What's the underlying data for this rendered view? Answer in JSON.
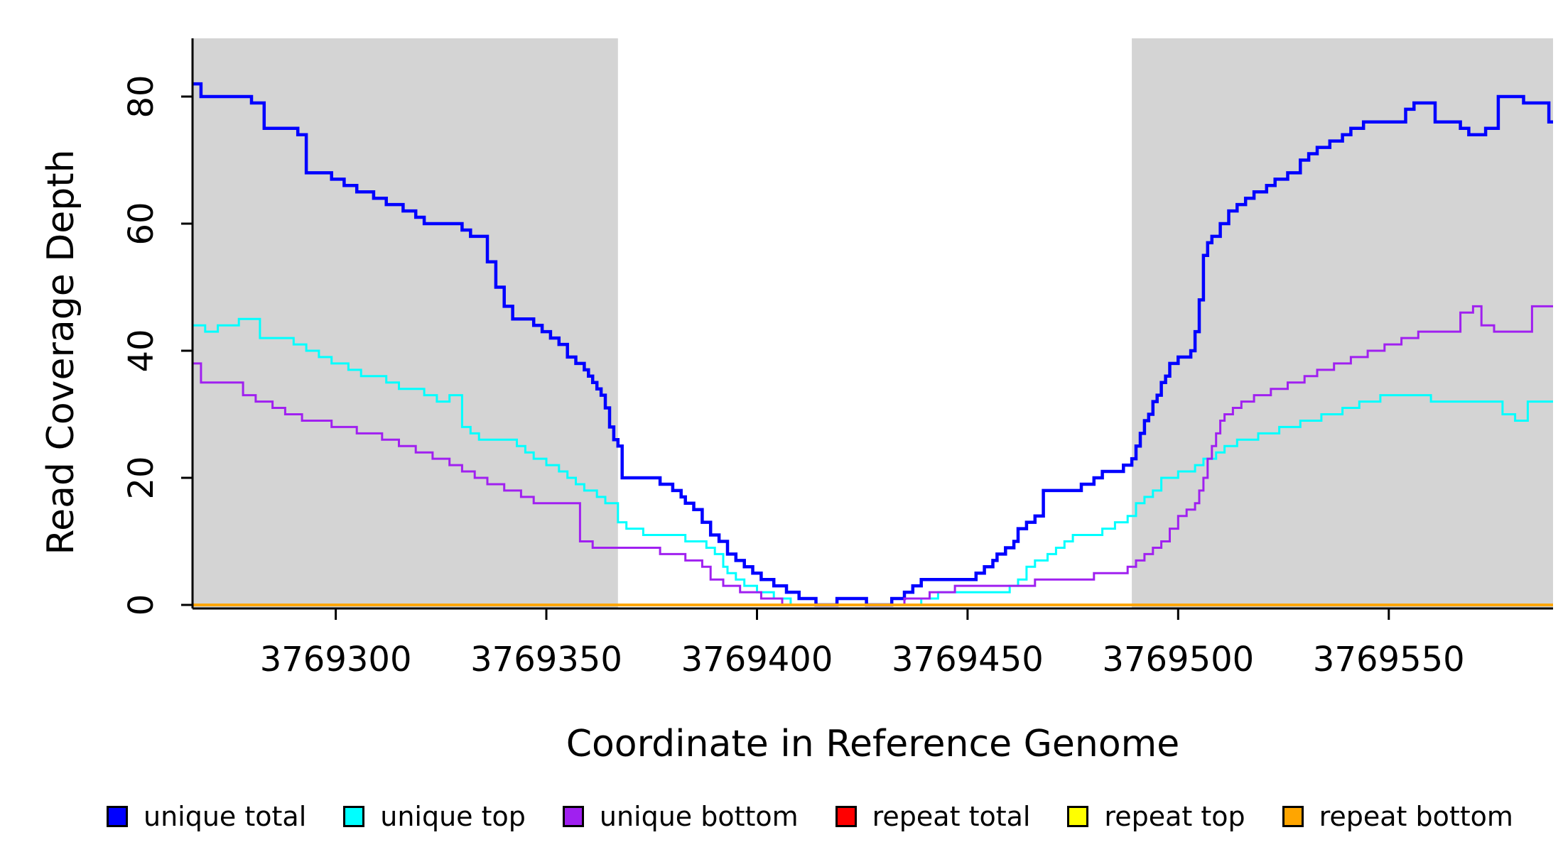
{
  "figure": {
    "xlabel": "Coordinate in Reference Genome",
    "ylabel": "Read Coverage Depth"
  },
  "legend": {
    "items": [
      {
        "label": "unique total",
        "color": "#0000FF"
      },
      {
        "label": "unique top",
        "color": "#00FFFF"
      },
      {
        "label": "unique bottom",
        "color": "#A020F0"
      },
      {
        "label": "repeat total",
        "color": "#FF0000"
      },
      {
        "label": "repeat top",
        "color": "#FFFF00"
      },
      {
        "label": "repeat bottom",
        "color": "#FFA500"
      }
    ]
  },
  "chart_data": {
    "type": "line",
    "subtype": "step",
    "title": "",
    "xlabel": "Coordinate in Reference Genome",
    "ylabel": "Read Coverage Depth",
    "xlim": [
      3769266,
      3769589
    ],
    "ylim": [
      0,
      89
    ],
    "x_ticks": [
      3769300,
      3769350,
      3769400,
      3769450,
      3769500,
      3769550
    ],
    "y_ticks": [
      0,
      20,
      40,
      60,
      80
    ],
    "grid": false,
    "legend_position": "bottom",
    "shaded_regions": [
      {
        "x0": 3769266,
        "x1": 3769367,
        "color": "#D4D4D4"
      },
      {
        "x0": 3769489,
        "x1": 3769589,
        "color": "#D4D4D4"
      }
    ],
    "axis_color": "#000000",
    "series": [
      {
        "name": "unique total",
        "color": "#0000FF",
        "width": 4.5,
        "points": [
          [
            3769266,
            82
          ],
          [
            3769268,
            80
          ],
          [
            3769280,
            79
          ],
          [
            3769283,
            75
          ],
          [
            3769291,
            74
          ],
          [
            3769293,
            68
          ],
          [
            3769299,
            67
          ],
          [
            3769302,
            66
          ],
          [
            3769305,
            65
          ],
          [
            3769309,
            64
          ],
          [
            3769312,
            63
          ],
          [
            3769316,
            62
          ],
          [
            3769319,
            61
          ],
          [
            3769321,
            60
          ],
          [
            3769330,
            59
          ],
          [
            3769332,
            58
          ],
          [
            3769336,
            54
          ],
          [
            3769338,
            50
          ],
          [
            3769340,
            47
          ],
          [
            3769342,
            45
          ],
          [
            3769347,
            44
          ],
          [
            3769349,
            43
          ],
          [
            3769351,
            42
          ],
          [
            3769353,
            41
          ],
          [
            3769355,
            39
          ],
          [
            3769357,
            38
          ],
          [
            3769359,
            37
          ],
          [
            3769360,
            36
          ],
          [
            3769361,
            35
          ],
          [
            3769362,
            34
          ],
          [
            3769363,
            33
          ],
          [
            3769364,
            31
          ],
          [
            3769365,
            28
          ],
          [
            3769366,
            26
          ],
          [
            3769367,
            25
          ],
          [
            3769368,
            20
          ],
          [
            3769377,
            19
          ],
          [
            3769380,
            18
          ],
          [
            3769382,
            17
          ],
          [
            3769383,
            16
          ],
          [
            3769385,
            15
          ],
          [
            3769387,
            13
          ],
          [
            3769389,
            11
          ],
          [
            3769391,
            10
          ],
          [
            3769393,
            8
          ],
          [
            3769395,
            7
          ],
          [
            3769397,
            6
          ],
          [
            3769399,
            5
          ],
          [
            3769401,
            4
          ],
          [
            3769404,
            3
          ],
          [
            3769407,
            2
          ],
          [
            3769410,
            1
          ],
          [
            3769414,
            0
          ],
          [
            3769419,
            1
          ],
          [
            3769426,
            0
          ],
          [
            3769432,
            1
          ],
          [
            3769435,
            2
          ],
          [
            3769437,
            3
          ],
          [
            3769439,
            4
          ],
          [
            3769452,
            5
          ],
          [
            3769454,
            6
          ],
          [
            3769456,
            7
          ],
          [
            3769457,
            8
          ],
          [
            3769459,
            9
          ],
          [
            3769461,
            10
          ],
          [
            3769462,
            12
          ],
          [
            3769464,
            13
          ],
          [
            3769466,
            14
          ],
          [
            3769468,
            18
          ],
          [
            3769477,
            19
          ],
          [
            3769480,
            20
          ],
          [
            3769482,
            21
          ],
          [
            3769487,
            22
          ],
          [
            3769489,
            23
          ],
          [
            3769490,
            25
          ],
          [
            3769491,
            27
          ],
          [
            3769492,
            29
          ],
          [
            3769493,
            30
          ],
          [
            3769494,
            32
          ],
          [
            3769495,
            33
          ],
          [
            3769496,
            35
          ],
          [
            3769497,
            36
          ],
          [
            3769498,
            38
          ],
          [
            3769500,
            39
          ],
          [
            3769503,
            40
          ],
          [
            3769504,
            43
          ],
          [
            3769505,
            48
          ],
          [
            3769506,
            55
          ],
          [
            3769507,
            57
          ],
          [
            3769508,
            58
          ],
          [
            3769510,
            60
          ],
          [
            3769512,
            62
          ],
          [
            3769514,
            63
          ],
          [
            3769516,
            64
          ],
          [
            3769518,
            65
          ],
          [
            3769521,
            66
          ],
          [
            3769523,
            67
          ],
          [
            3769526,
            68
          ],
          [
            3769529,
            70
          ],
          [
            3769531,
            71
          ],
          [
            3769533,
            72
          ],
          [
            3769536,
            73
          ],
          [
            3769539,
            74
          ],
          [
            3769541,
            75
          ],
          [
            3769544,
            76
          ],
          [
            3769554,
            78
          ],
          [
            3769556,
            79
          ],
          [
            3769561,
            76
          ],
          [
            3769567,
            75
          ],
          [
            3769569,
            74
          ],
          [
            3769573,
            75
          ],
          [
            3769576,
            80
          ],
          [
            3769582,
            79
          ],
          [
            3769588,
            76
          ]
        ]
      },
      {
        "name": "unique top",
        "color": "#00FFFF",
        "width": 3,
        "points": [
          [
            3769266,
            44
          ],
          [
            3769269,
            43
          ],
          [
            3769272,
            44
          ],
          [
            3769277,
            45
          ],
          [
            3769282,
            42
          ],
          [
            3769290,
            41
          ],
          [
            3769293,
            40
          ],
          [
            3769296,
            39
          ],
          [
            3769299,
            38
          ],
          [
            3769303,
            37
          ],
          [
            3769306,
            36
          ],
          [
            3769312,
            35
          ],
          [
            3769315,
            34
          ],
          [
            3769321,
            33
          ],
          [
            3769324,
            32
          ],
          [
            3769327,
            33
          ],
          [
            3769330,
            28
          ],
          [
            3769332,
            27
          ],
          [
            3769334,
            26
          ],
          [
            3769343,
            25
          ],
          [
            3769345,
            24
          ],
          [
            3769347,
            23
          ],
          [
            3769350,
            22
          ],
          [
            3769353,
            21
          ],
          [
            3769355,
            20
          ],
          [
            3769357,
            19
          ],
          [
            3769359,
            18
          ],
          [
            3769362,
            17
          ],
          [
            3769364,
            16
          ],
          [
            3769367,
            13
          ],
          [
            3769369,
            12
          ],
          [
            3769373,
            11
          ],
          [
            3769383,
            10
          ],
          [
            3769388,
            9
          ],
          [
            3769390,
            8
          ],
          [
            3769392,
            6
          ],
          [
            3769393,
            5
          ],
          [
            3769395,
            4
          ],
          [
            3769397,
            3
          ],
          [
            3769400,
            2
          ],
          [
            3769404,
            1
          ],
          [
            3769408,
            0
          ],
          [
            3769439,
            1
          ],
          [
            3769443,
            2
          ],
          [
            3769460,
            3
          ],
          [
            3769462,
            4
          ],
          [
            3769464,
            6
          ],
          [
            3769466,
            7
          ],
          [
            3769469,
            8
          ],
          [
            3769471,
            9
          ],
          [
            3769473,
            10
          ],
          [
            3769475,
            11
          ],
          [
            3769482,
            12
          ],
          [
            3769485,
            13
          ],
          [
            3769488,
            14
          ],
          [
            3769490,
            16
          ],
          [
            3769492,
            17
          ],
          [
            3769494,
            18
          ],
          [
            3769496,
            20
          ],
          [
            3769500,
            21
          ],
          [
            3769504,
            22
          ],
          [
            3769506,
            23
          ],
          [
            3769509,
            24
          ],
          [
            3769511,
            25
          ],
          [
            3769514,
            26
          ],
          [
            3769519,
            27
          ],
          [
            3769524,
            28
          ],
          [
            3769529,
            29
          ],
          [
            3769534,
            30
          ],
          [
            3769539,
            31
          ],
          [
            3769543,
            32
          ],
          [
            3769548,
            33
          ],
          [
            3769560,
            32
          ],
          [
            3769577,
            30
          ],
          [
            3769580,
            29
          ],
          [
            3769583,
            32
          ]
        ]
      },
      {
        "name": "unique bottom",
        "color": "#A020F0",
        "width": 3,
        "points": [
          [
            3769266,
            38
          ],
          [
            3769268,
            35
          ],
          [
            3769278,
            33
          ],
          [
            3769281,
            32
          ],
          [
            3769285,
            31
          ],
          [
            3769288,
            30
          ],
          [
            3769292,
            29
          ],
          [
            3769299,
            28
          ],
          [
            3769305,
            27
          ],
          [
            3769311,
            26
          ],
          [
            3769315,
            25
          ],
          [
            3769319,
            24
          ],
          [
            3769323,
            23
          ],
          [
            3769327,
            22
          ],
          [
            3769330,
            21
          ],
          [
            3769333,
            20
          ],
          [
            3769336,
            19
          ],
          [
            3769340,
            18
          ],
          [
            3769344,
            17
          ],
          [
            3769347,
            16
          ],
          [
            3769358,
            10
          ],
          [
            3769361,
            9
          ],
          [
            3769377,
            8
          ],
          [
            3769383,
            7
          ],
          [
            3769387,
            6
          ],
          [
            3769389,
            4
          ],
          [
            3769392,
            3
          ],
          [
            3769396,
            2
          ],
          [
            3769401,
            1
          ],
          [
            3769406,
            0
          ],
          [
            3769435,
            1
          ],
          [
            3769441,
            2
          ],
          [
            3769447,
            3
          ],
          [
            3769466,
            4
          ],
          [
            3769480,
            5
          ],
          [
            3769488,
            6
          ],
          [
            3769490,
            7
          ],
          [
            3769492,
            8
          ],
          [
            3769494,
            9
          ],
          [
            3769496,
            10
          ],
          [
            3769498,
            12
          ],
          [
            3769500,
            14
          ],
          [
            3769502,
            15
          ],
          [
            3769504,
            16
          ],
          [
            3769505,
            18
          ],
          [
            3769506,
            20
          ],
          [
            3769507,
            23
          ],
          [
            3769508,
            25
          ],
          [
            3769509,
            27
          ],
          [
            3769510,
            29
          ],
          [
            3769511,
            30
          ],
          [
            3769513,
            31
          ],
          [
            3769515,
            32
          ],
          [
            3769518,
            33
          ],
          [
            3769522,
            34
          ],
          [
            3769526,
            35
          ],
          [
            3769530,
            36
          ],
          [
            3769533,
            37
          ],
          [
            3769537,
            38
          ],
          [
            3769541,
            39
          ],
          [
            3769545,
            40
          ],
          [
            3769549,
            41
          ],
          [
            3769553,
            42
          ],
          [
            3769557,
            43
          ],
          [
            3769567,
            46
          ],
          [
            3769570,
            47
          ],
          [
            3769572,
            44
          ],
          [
            3769575,
            43
          ],
          [
            3769584,
            47
          ]
        ]
      },
      {
        "name": "repeat total",
        "color": "#FF0000",
        "width": 3.5,
        "points": [
          [
            3769266,
            0
          ]
        ]
      },
      {
        "name": "repeat top",
        "color": "#FFFF00",
        "width": 3.5,
        "points": [
          [
            3769266,
            0
          ]
        ]
      },
      {
        "name": "repeat bottom",
        "color": "#FFA500",
        "width": 3.5,
        "points": [
          [
            3769266,
            0
          ]
        ]
      }
    ]
  }
}
